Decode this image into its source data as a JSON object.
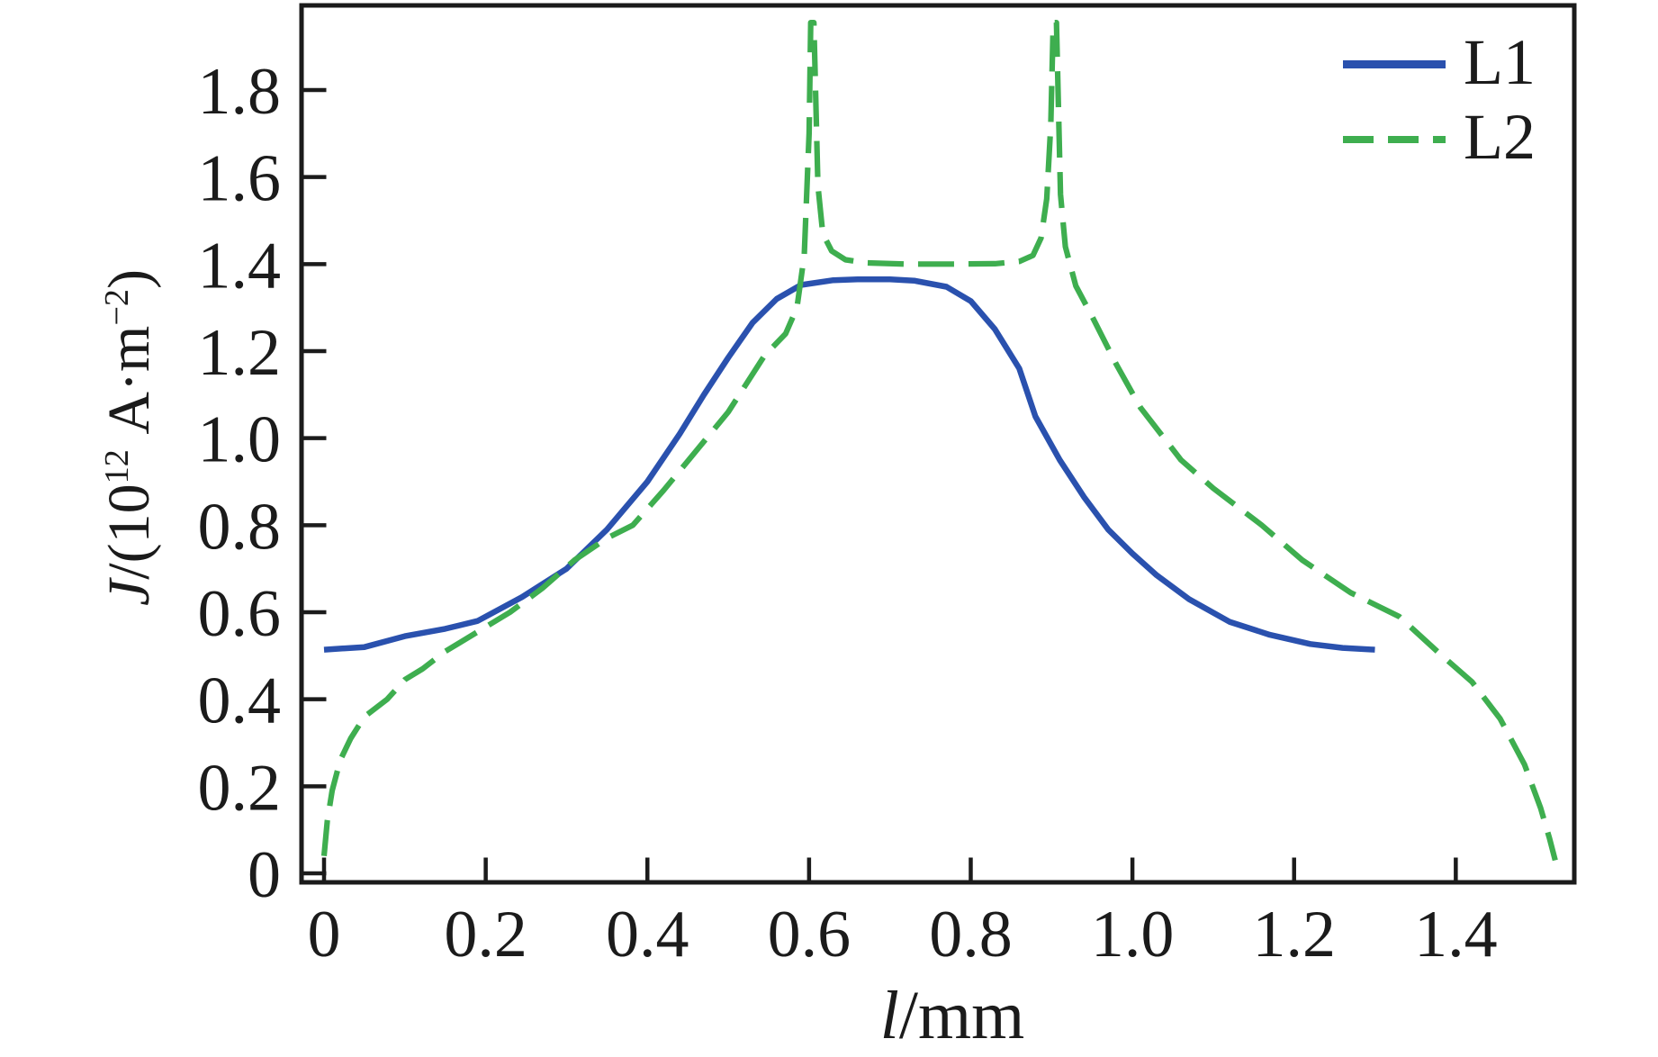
{
  "figure": {
    "background": "#ffffff",
    "ink_color": "#1b1b1b"
  },
  "axes": {
    "y_label_parts": {
      "var": "J",
      "pre": "/(10",
      "sup1": "12",
      "mid": " A·m",
      "sup2": "−2",
      "post": ")"
    },
    "x_label_parts": {
      "var": "l",
      "rest": "/mm"
    }
  },
  "legend": {
    "position": "upper-right",
    "items": [
      {
        "label": "L1",
        "color": "#2a51ae",
        "style": "solid"
      },
      {
        "label": "L2",
        "color": "#3eae4f",
        "style": "dashed"
      }
    ]
  },
  "chart_data": {
    "type": "line",
    "title": "",
    "xlabel": "l/mm",
    "ylabel": "J/(10^12 A·m^-2)",
    "xlim": [
      0,
      1.55
    ],
    "ylim": [
      0,
      2.0
    ],
    "grid": false,
    "legend_position": "upper right",
    "x_tick_labels": [
      "0",
      "0.2",
      "0.4",
      "0.6",
      "0.8",
      "1.0",
      "1.2",
      "1.4"
    ],
    "y_tick_labels": [
      "0",
      "0.2",
      "0.4",
      "0.6",
      "0.8",
      "1.0",
      "1.2",
      "1.4",
      "1.6",
      "1.8"
    ],
    "series": [
      {
        "name": "L1",
        "color": "#2a51ae",
        "dash": "solid",
        "width": 6.5,
        "points": [
          [
            0,
            0.514
          ],
          [
            0.05,
            0.52
          ],
          [
            0.1,
            0.545
          ],
          [
            0.15,
            0.562
          ],
          [
            0.19,
            0.58
          ],
          [
            0.245,
            0.635
          ],
          [
            0.3,
            0.7
          ],
          [
            0.35,
            0.79
          ],
          [
            0.4,
            0.9
          ],
          [
            0.44,
            1.01
          ],
          [
            0.47,
            1.1
          ],
          [
            0.5,
            1.185
          ],
          [
            0.53,
            1.265
          ],
          [
            0.56,
            1.32
          ],
          [
            0.59,
            1.352
          ],
          [
            0.63,
            1.363
          ],
          [
            0.66,
            1.365
          ],
          [
            0.7,
            1.365
          ],
          [
            0.73,
            1.362
          ],
          [
            0.77,
            1.348
          ],
          [
            0.8,
            1.315
          ],
          [
            0.83,
            1.25
          ],
          [
            0.86,
            1.16
          ],
          [
            0.88,
            1.05
          ],
          [
            0.91,
            0.95
          ],
          [
            0.94,
            0.865
          ],
          [
            0.97,
            0.79
          ],
          [
            1.0,
            0.735
          ],
          [
            1.03,
            0.685
          ],
          [
            1.07,
            0.63
          ],
          [
            1.12,
            0.578
          ],
          [
            1.17,
            0.548
          ],
          [
            1.22,
            0.527
          ],
          [
            1.26,
            0.518
          ],
          [
            1.3,
            0.514
          ]
        ]
      },
      {
        "name": "L2",
        "color": "#3eae4f",
        "dash": "dashed",
        "width": 6.2,
        "points": [
          [
            0,
            0.04
          ],
          [
            0.004,
            0.12
          ],
          [
            0.01,
            0.19
          ],
          [
            0.02,
            0.26
          ],
          [
            0.033,
            0.31
          ],
          [
            0.05,
            0.36
          ],
          [
            0.078,
            0.4
          ],
          [
            0.1,
            0.445
          ],
          [
            0.122,
            0.47
          ],
          [
            0.15,
            0.51
          ],
          [
            0.19,
            0.555
          ],
          [
            0.23,
            0.6
          ],
          [
            0.27,
            0.655
          ],
          [
            0.31,
            0.72
          ],
          [
            0.35,
            0.77
          ],
          [
            0.382,
            0.8
          ],
          [
            0.42,
            0.88
          ],
          [
            0.46,
            0.97
          ],
          [
            0.5,
            1.06
          ],
          [
            0.545,
            1.19
          ],
          [
            0.571,
            1.24
          ],
          [
            0.585,
            1.3
          ],
          [
            0.594,
            1.42
          ],
          [
            0.6,
            1.7
          ],
          [
            0.602,
            1.955
          ],
          [
            0.606,
            1.955
          ],
          [
            0.611,
            1.58
          ],
          [
            0.617,
            1.47
          ],
          [
            0.628,
            1.43
          ],
          [
            0.645,
            1.41
          ],
          [
            0.67,
            1.403
          ],
          [
            0.72,
            1.4
          ],
          [
            0.78,
            1.4
          ],
          [
            0.83,
            1.401
          ],
          [
            0.86,
            1.406
          ],
          [
            0.877,
            1.42
          ],
          [
            0.887,
            1.46
          ],
          [
            0.894,
            1.55
          ],
          [
            0.899,
            1.72
          ],
          [
            0.902,
            1.955
          ],
          [
            0.906,
            1.955
          ],
          [
            0.911,
            1.56
          ],
          [
            0.917,
            1.44
          ],
          [
            0.93,
            1.35
          ],
          [
            0.95,
            1.28
          ],
          [
            0.98,
            1.17
          ],
          [
            1.01,
            1.07
          ],
          [
            1.06,
            0.95
          ],
          [
            1.1,
            0.885
          ],
          [
            1.16,
            0.8
          ],
          [
            1.21,
            0.72
          ],
          [
            1.27,
            0.645
          ],
          [
            1.33,
            0.59
          ],
          [
            1.38,
            0.505
          ],
          [
            1.42,
            0.44
          ],
          [
            1.455,
            0.355
          ],
          [
            1.485,
            0.25
          ],
          [
            1.505,
            0.15
          ],
          [
            1.516,
            0.08
          ],
          [
            1.523,
            0.03
          ]
        ]
      }
    ]
  }
}
